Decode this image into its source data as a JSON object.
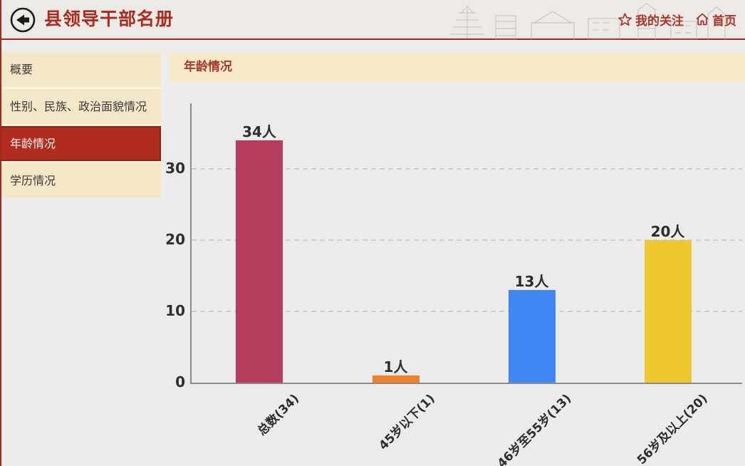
{
  "header": {
    "title": "县领导干部名册",
    "nav_items": [
      {
        "label": "我的关注",
        "icon": "star-icon"
      },
      {
        "label": "首页",
        "icon": "home-icon"
      }
    ]
  },
  "sidebar": {
    "items": [
      {
        "label": "概要",
        "selected": false
      },
      {
        "label": "性别、民族、政治面貌情况",
        "selected": false
      },
      {
        "label": "年龄情况",
        "selected": true
      },
      {
        "label": "学历情况",
        "selected": false
      }
    ]
  },
  "main": {
    "section_title": "年龄情况"
  },
  "chart_data": {
    "type": "bar",
    "title": "年龄情况",
    "categories": [
      "总数(34)",
      "45岁以下(1)",
      "46岁至55岁(13)",
      "56岁及以上(20)"
    ],
    "values": [
      34,
      1,
      13,
      20
    ],
    "value_labels": [
      "34人",
      "1人",
      "13人",
      "20人"
    ],
    "bar_colors": [
      "#b43a5e",
      "#f0812a",
      "#4286f4",
      "#eec731"
    ],
    "yticks": [
      0,
      10,
      20,
      30
    ],
    "ylim": [
      0,
      39
    ],
    "xlabel": "",
    "ylabel": "",
    "grid": "horizontal-dashed",
    "legend": "none"
  },
  "colors": {
    "accent_red": "#9e2b22",
    "title_red": "#ae2a1f",
    "nav_red": "#a8352a",
    "sidebar_bg": "#f4e6c8",
    "selected_bg": "#b02c20",
    "banner_bg": "#f7e8c8",
    "chart_bg": "#ebebeb",
    "axis_gray": "#8a8a8a",
    "grid_gray": "#cfcfcf"
  }
}
